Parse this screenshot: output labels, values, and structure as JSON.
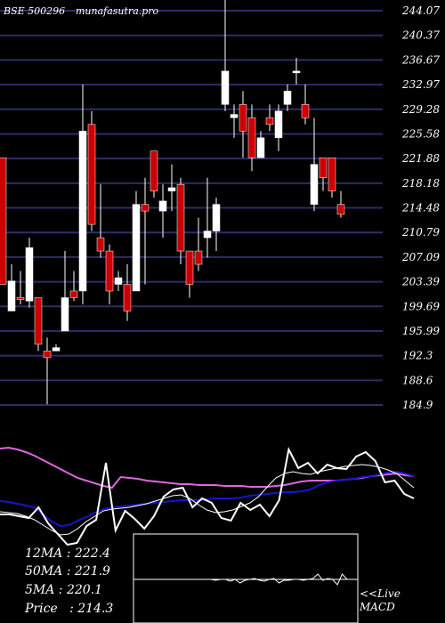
{
  "chart_data": {
    "type": "candlestick",
    "watermark_left": "BSE 500296",
    "watermark_right": "munafasutra.pro",
    "y_ticks": [
      "244.07",
      "240.37",
      "236.67",
      "232.97",
      "229.28",
      "225.58",
      "221.88",
      "218.18",
      "214.48",
      "210.79",
      "207.09",
      "203.39",
      "199.69",
      "195.99",
      "192.3",
      "188.6",
      "184.9"
    ],
    "ylim": [
      184.9,
      244.07
    ],
    "candles": [
      {
        "o": 222,
        "h": 222,
        "l": 203,
        "c": 203,
        "dir": "down"
      },
      {
        "o": 199,
        "h": 206,
        "l": 199,
        "c": 203.5,
        "dir": "up"
      },
      {
        "o": 201,
        "h": 205,
        "l": 200,
        "c": 201,
        "dir": "down"
      },
      {
        "o": 200.5,
        "h": 210,
        "l": 199.5,
        "c": 208.5,
        "dir": "up"
      },
      {
        "o": 201,
        "h": 201,
        "l": 193,
        "c": 194,
        "dir": "down"
      },
      {
        "o": 193,
        "h": 195,
        "l": 185,
        "c": 192,
        "dir": "down"
      },
      {
        "o": 193,
        "h": 194,
        "l": 193,
        "c": 193.5,
        "dir": "up"
      },
      {
        "o": 196,
        "h": 208,
        "l": 196,
        "c": 201,
        "dir": "up"
      },
      {
        "o": 202,
        "h": 205,
        "l": 200.5,
        "c": 201,
        "dir": "down"
      },
      {
        "o": 202,
        "h": 233,
        "l": 200,
        "c": 226,
        "dir": "up"
      },
      {
        "o": 227,
        "h": 229,
        "l": 211,
        "c": 212,
        "dir": "down"
      },
      {
        "o": 210,
        "h": 218,
        "l": 207,
        "c": 208,
        "dir": "down"
      },
      {
        "o": 208,
        "h": 209,
        "l": 200,
        "c": 202,
        "dir": "down"
      },
      {
        "o": 203,
        "h": 205,
        "l": 202,
        "c": 204,
        "dir": "up"
      },
      {
        "o": 203,
        "h": 206,
        "l": 197.5,
        "c": 199,
        "dir": "down"
      },
      {
        "o": 202,
        "h": 217,
        "l": 202,
        "c": 215,
        "dir": "up"
      },
      {
        "o": 215,
        "h": 219,
        "l": 203,
        "c": 214,
        "dir": "down"
      },
      {
        "o": 223,
        "h": 223,
        "l": 216,
        "c": 217,
        "dir": "down"
      },
      {
        "o": 214,
        "h": 218,
        "l": 210,
        "c": 215.5,
        "dir": "up"
      },
      {
        "o": 217,
        "h": 221,
        "l": 214,
        "c": 217.5,
        "dir": "up"
      },
      {
        "o": 218,
        "h": 219,
        "l": 206,
        "c": 208,
        "dir": "down"
      },
      {
        "o": 208,
        "h": 208,
        "l": 201,
        "c": 203,
        "dir": "down"
      },
      {
        "o": 208,
        "h": 213,
        "l": 205,
        "c": 206,
        "dir": "down"
      },
      {
        "o": 210,
        "h": 219,
        "l": 207,
        "c": 211,
        "dir": "up"
      },
      {
        "o": 211,
        "h": 216,
        "l": 208,
        "c": 215,
        "dir": "up"
      },
      {
        "o": 230,
        "h": 248,
        "l": 229,
        "c": 235,
        "dir": "up"
      },
      {
        "o": 228,
        "h": 230,
        "l": 225,
        "c": 228.5,
        "dir": "up"
      },
      {
        "o": 230,
        "h": 232,
        "l": 222,
        "c": 226,
        "dir": "down"
      },
      {
        "o": 228,
        "h": 230,
        "l": 220,
        "c": 222,
        "dir": "down"
      },
      {
        "o": 222,
        "h": 226,
        "l": 222,
        "c": 225,
        "dir": "up"
      },
      {
        "o": 228,
        "h": 230,
        "l": 226,
        "c": 227,
        "dir": "down"
      },
      {
        "o": 225,
        "h": 230,
        "l": 223,
        "c": 229,
        "dir": "up"
      },
      {
        "o": 230,
        "h": 233,
        "l": 229,
        "c": 232,
        "dir": "up"
      },
      {
        "o": 235,
        "h": 237,
        "l": 233,
        "c": 235,
        "dir": "up"
      },
      {
        "o": 230,
        "h": 233,
        "l": 227,
        "c": 228,
        "dir": "down"
      },
      {
        "o": 221,
        "h": 228,
        "l": 214,
        "c": 215,
        "dir": "up"
      },
      {
        "o": 222,
        "h": 222,
        "l": 217,
        "c": 219,
        "dir": "down"
      },
      {
        "o": 222,
        "h": 222,
        "l": 216,
        "c": 217,
        "dir": "down"
      },
      {
        "o": 215,
        "h": 217,
        "l": 213,
        "c": 213.5,
        "dir": "down"
      }
    ],
    "ma_panel": {
      "lines": [
        {
          "color": "#dd66dd",
          "y": [
            504,
            503,
            505,
            508,
            512,
            517,
            522,
            527,
            532,
            537,
            540,
            543,
            546,
            548,
            536,
            537,
            538,
            540,
            541,
            542,
            543,
            544,
            544,
            545,
            545,
            545,
            546,
            546,
            546,
            547,
            547,
            547,
            546,
            545,
            543,
            541,
            540,
            540,
            540,
            540,
            539,
            538,
            537,
            535,
            534,
            533,
            532,
            534,
            535
          ]
        },
        {
          "color": "#1515cc",
          "y": [
            563,
            564,
            566,
            568,
            570,
            578,
            586,
            591,
            590,
            585,
            581,
            576,
            572,
            570,
            569,
            568,
            567,
            566,
            565,
            564,
            563,
            562,
            562,
            562,
            561,
            560,
            560,
            560,
            559,
            557,
            556,
            555,
            554,
            553,
            553,
            552,
            550,
            545,
            542,
            540,
            539,
            538,
            536,
            535,
            533,
            531,
            530,
            532,
            535
          ]
        },
        {
          "color": "#ffffff",
          "y": [
            575,
            576,
            577,
            580,
            584,
            590,
            596,
            601,
            600,
            594,
            586,
            580,
            574,
            572,
            571,
            570,
            568,
            566,
            563,
            560,
            557,
            556,
            560,
            567,
            573,
            576,
            575,
            573,
            569,
            565,
            558,
            547,
            537,
            532,
            530,
            532,
            533,
            530,
            528,
            526,
            524,
            523,
            522,
            523,
            525,
            528,
            532,
            540,
            548
          ]
        },
        {
          "color": "#ffffff",
          "y": [
            578,
            578,
            580,
            582,
            570,
            588,
            600,
            612,
            610,
            591,
            584,
            520,
            596,
            574,
            583,
            594,
            580,
            558,
            550,
            548,
            570,
            560,
            565,
            582,
            585,
            565,
            573,
            567,
            580,
            562,
            505,
            526,
            520,
            532,
            522,
            526,
            527,
            513,
            508,
            518,
            542,
            540,
            555,
            560
          ]
        }
      ]
    },
    "macd_panel": {
      "label_line1": "<<Live",
      "label_line2": "MACD",
      "signal_y": [
        651,
        651,
        651,
        651,
        651,
        652,
        651,
        651,
        653,
        651,
        655,
        652,
        651,
        650,
        652,
        653,
        651,
        650,
        655,
        652,
        652,
        651,
        651,
        652,
        651,
        650,
        645,
        652,
        650,
        651,
        657,
        645,
        651
      ]
    },
    "stats": {
      "ma12": "12MA : 222.4",
      "ma50": "50MA : 221.9",
      "ma5": "5MA : 220.1",
      "price": "Price   : 214.3"
    }
  }
}
